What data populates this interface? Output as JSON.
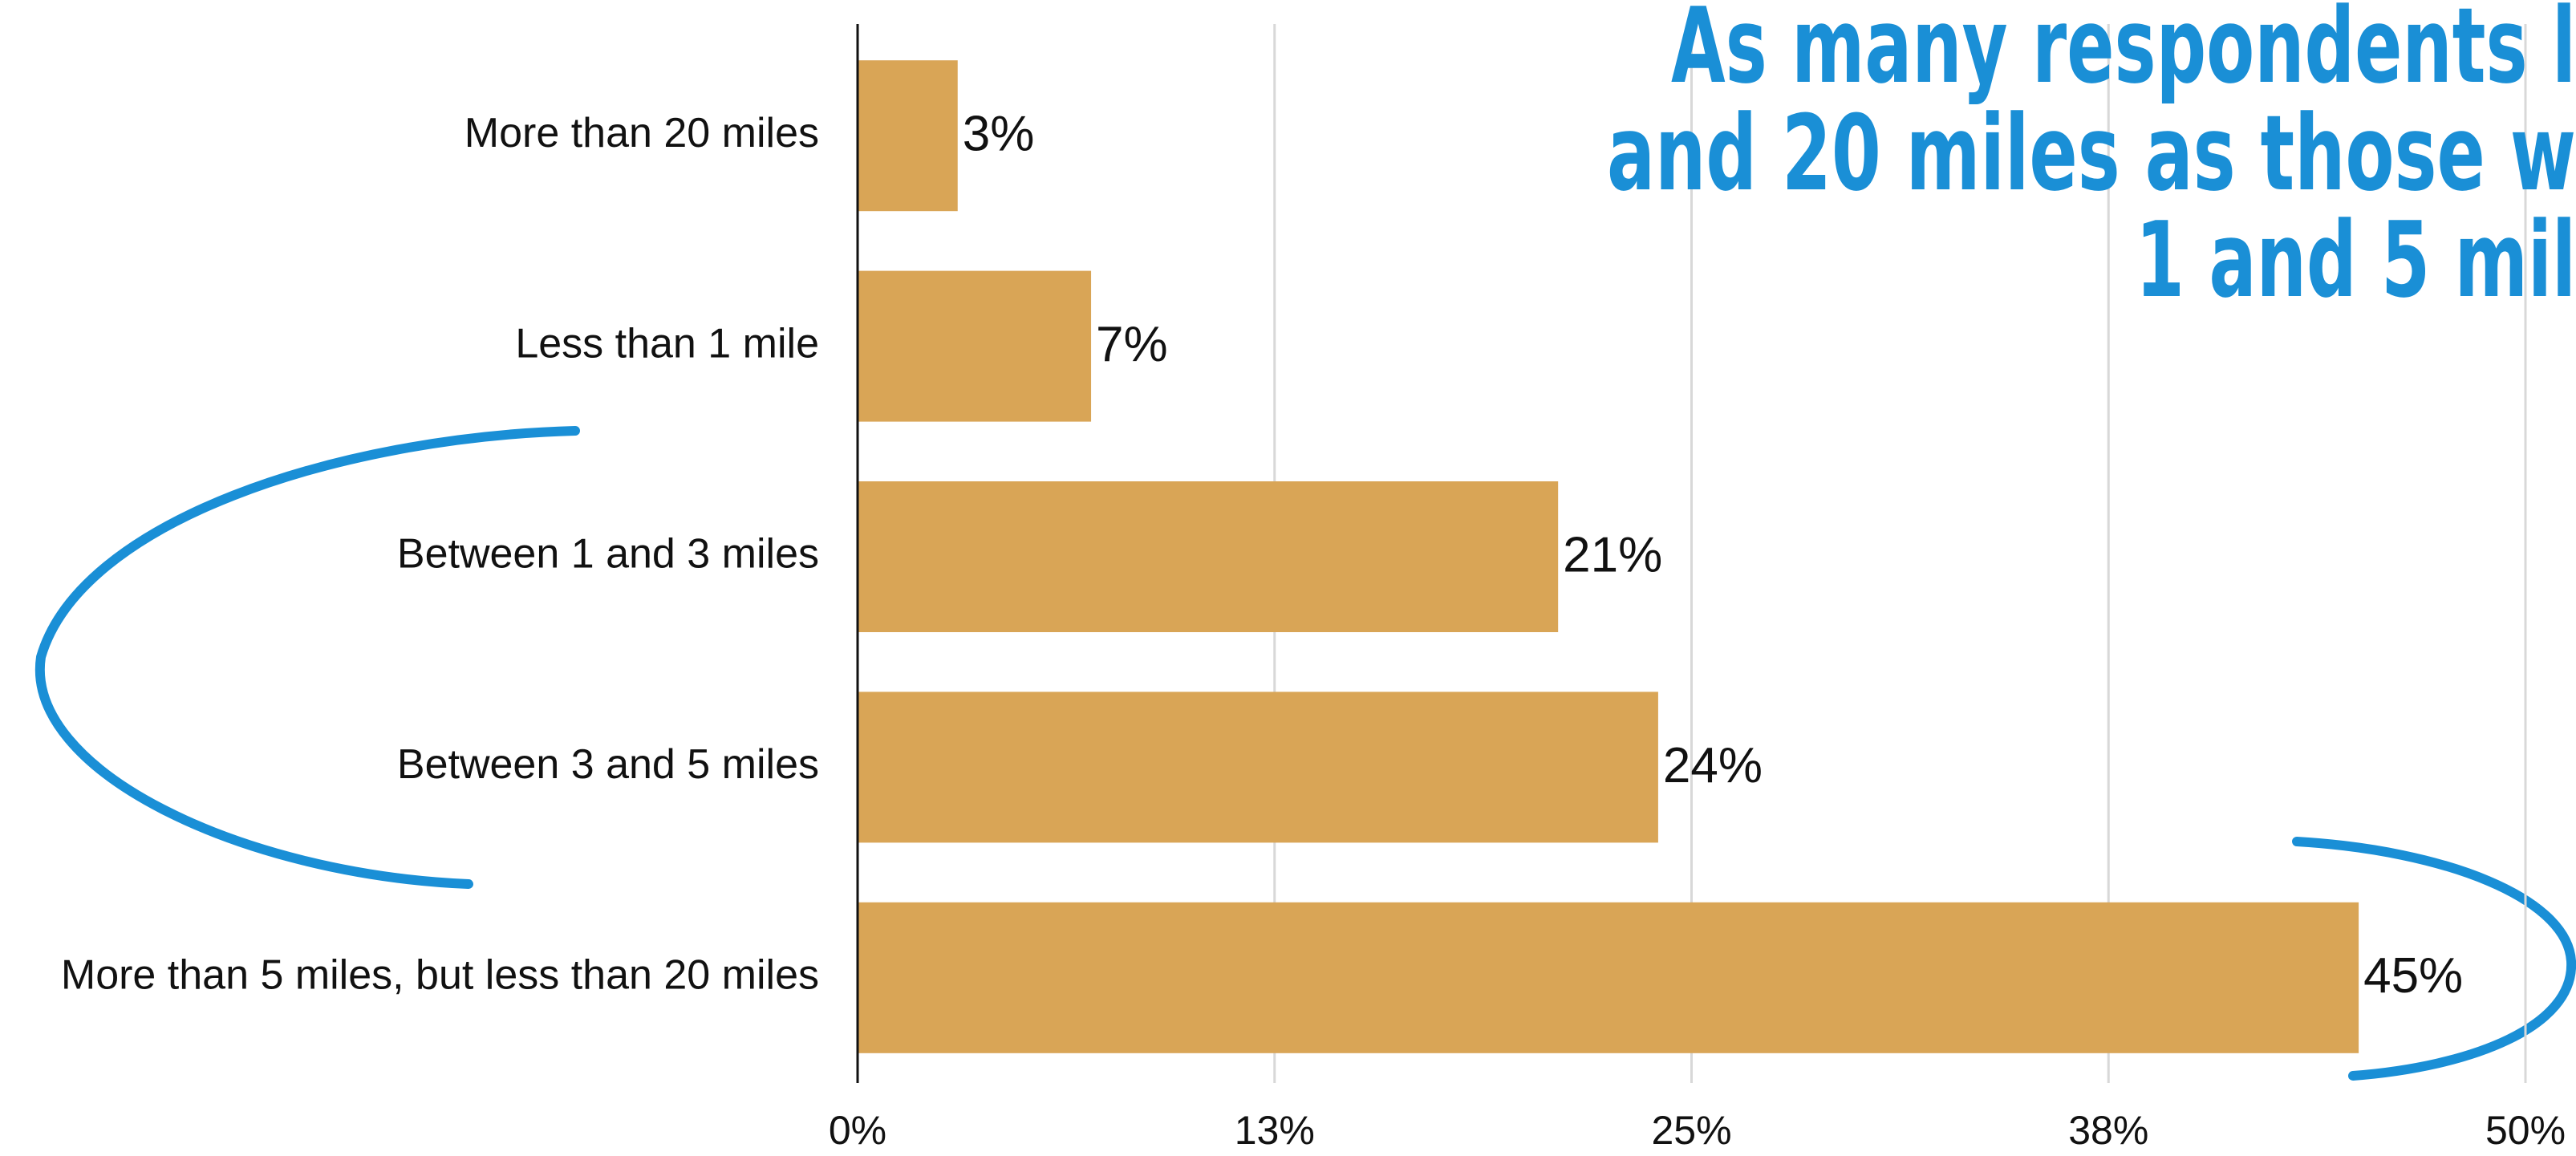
{
  "chart_data": {
    "type": "bar",
    "orientation": "horizontal",
    "title_lines": [
      "As many respondents l",
      "and 20 miles as those w",
      "1 and 5 mil"
    ],
    "categories": [
      "More than 20 miles",
      "Less than 1 mile",
      "Between 1 and 3 miles",
      "Between 3 and 5 miles",
      "More than 5 miles, but less than 20 miles"
    ],
    "values": [
      3,
      7,
      21,
      24,
      45
    ],
    "value_labels": [
      "3%",
      "7%",
      "21%",
      "24%",
      "45%"
    ],
    "color": "#d9a556",
    "xlim": [
      0,
      50
    ],
    "xticks": [
      {
        "value": 0,
        "label": "0%"
      },
      {
        "value": 12.5,
        "label": "13%"
      },
      {
        "value": 25,
        "label": "25%"
      },
      {
        "value": 37.5,
        "label": "38%"
      },
      {
        "value": 50,
        "label": "50%"
      }
    ],
    "grid": true
  }
}
